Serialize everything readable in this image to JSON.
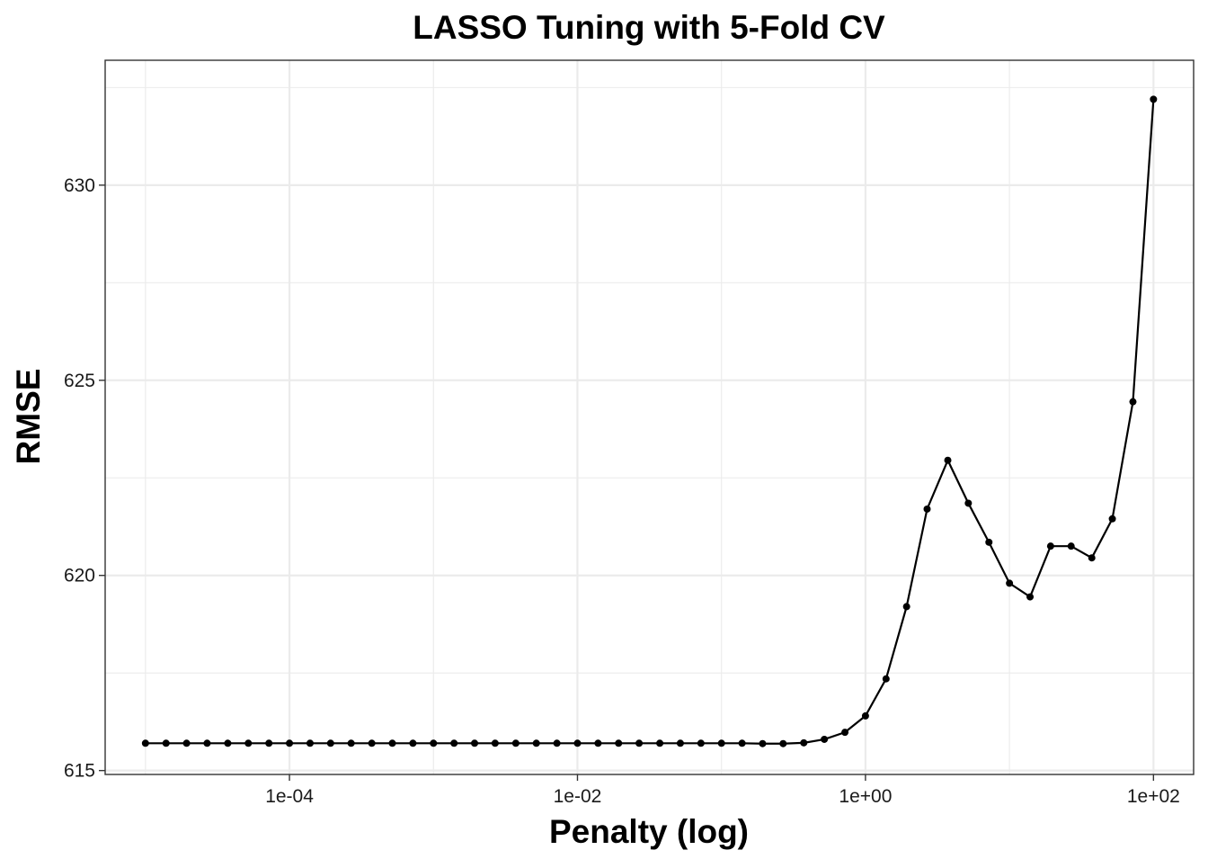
{
  "chart_data": {
    "type": "line",
    "title": "LASSO Tuning with 5-Fold CV",
    "xlabel": "Penalty (log)",
    "ylabel": "RMSE",
    "x_scale": "log10",
    "xlim": [
      5.25e-06,
      190
    ],
    "ylim": [
      614.9,
      633.2
    ],
    "grid": true,
    "x_ticks": [
      0.0001,
      0.01,
      1,
      100
    ],
    "x_tick_labels": [
      "1e-04",
      "1e-02",
      "1e+00",
      "1e+02"
    ],
    "y_ticks": [
      615,
      620,
      625,
      630
    ],
    "y_tick_labels": [
      "615",
      "620",
      "625",
      "630"
    ],
    "series": [
      {
        "x": [
          1e-05,
          1.39e-05,
          1.93e-05,
          2.68e-05,
          3.73e-05,
          5.18e-05,
          7.2e-05,
          0.0001,
          0.000139,
          0.000193,
          0.000268,
          0.000373,
          0.000518,
          0.00072,
          0.001,
          0.00139,
          0.00193,
          0.00268,
          0.00373,
          0.00518,
          0.0072,
          0.01,
          0.0139,
          0.0193,
          0.0268,
          0.0373,
          0.0518,
          0.072,
          0.1,
          0.139,
          0.193,
          0.268,
          0.373,
          0.518,
          0.72,
          1,
          1.39,
          1.93,
          2.68,
          3.73,
          5.18,
          7.2,
          10,
          13.9,
          19.3,
          26.8,
          37.3,
          51.8,
          72,
          100
        ],
        "y": [
          615.7,
          615.7,
          615.7,
          615.7,
          615.7,
          615.7,
          615.7,
          615.7,
          615.7,
          615.7,
          615.7,
          615.7,
          615.7,
          615.7,
          615.7,
          615.7,
          615.7,
          615.7,
          615.7,
          615.7,
          615.7,
          615.7,
          615.7,
          615.7,
          615.7,
          615.7,
          615.7,
          615.7,
          615.7,
          615.7,
          615.69,
          615.69,
          615.71,
          615.8,
          615.98,
          616.4,
          617.35,
          619.2,
          621.7,
          622.95,
          621.85,
          620.85,
          619.8,
          619.45,
          620.75,
          620.75,
          620.45,
          621.45,
          624.45,
          632.2
        ]
      }
    ]
  }
}
